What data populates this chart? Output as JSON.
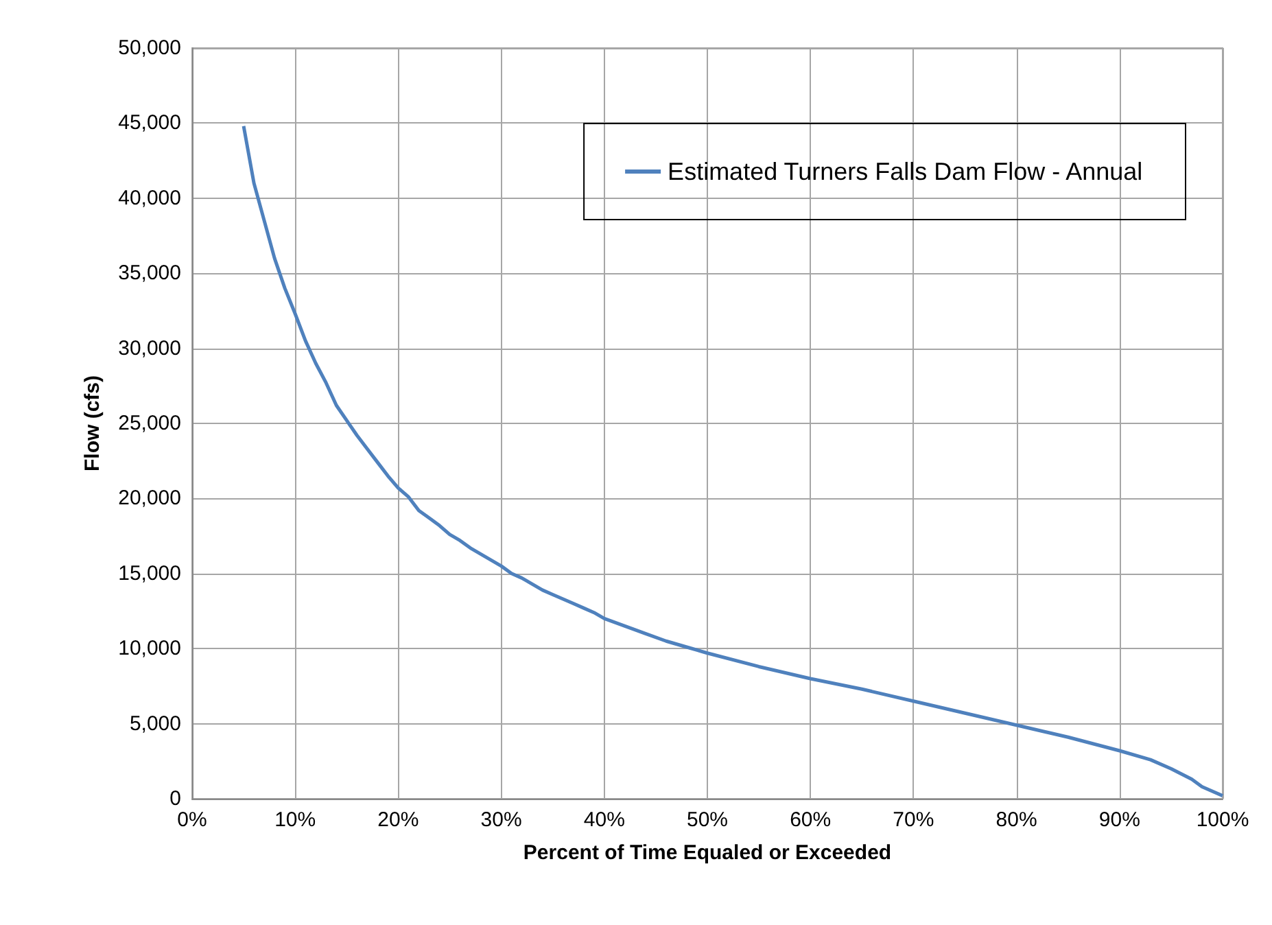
{
  "chart_data": {
    "type": "line",
    "xlabel": "Percent of Time Equaled or Exceeded",
    "ylabel": "Flow (cfs)",
    "series": [
      {
        "name": "Estimated Turners Falls Dam Flow - Annual",
        "color": "#4f81bd",
        "x": [
          5,
          6,
          7,
          8,
          9,
          10,
          11,
          12,
          13,
          14,
          15,
          16,
          17,
          18,
          19,
          20,
          21,
          22,
          23,
          24,
          25,
          26,
          27,
          28,
          29,
          30,
          31,
          32,
          33,
          34,
          35,
          36,
          37,
          38,
          39,
          40,
          42,
          44,
          46,
          48,
          50,
          55,
          60,
          65,
          70,
          75,
          80,
          85,
          90,
          93,
          95,
          97,
          98,
          100
        ],
        "values": [
          44800,
          41000,
          38500,
          36000,
          34000,
          32300,
          30500,
          29000,
          27700,
          26200,
          25200,
          24200,
          23300,
          22400,
          21500,
          20700,
          20100,
          19200,
          18700,
          18200,
          17600,
          17200,
          16700,
          16300,
          15900,
          15500,
          15000,
          14700,
          14300,
          13900,
          13600,
          13300,
          13000,
          12700,
          12400,
          12000,
          11500,
          11000,
          10500,
          10100,
          9700,
          8800,
          8000,
          7300,
          6500,
          5700,
          4900,
          4100,
          3200,
          2600,
          2000,
          1300,
          800,
          200
        ]
      }
    ],
    "xlim": [
      0,
      100
    ],
    "xticks": [
      {
        "value": 0,
        "label": "0%"
      },
      {
        "value": 10,
        "label": "10%"
      },
      {
        "value": 20,
        "label": "20%"
      },
      {
        "value": 30,
        "label": "30%"
      },
      {
        "value": 40,
        "label": "40%"
      },
      {
        "value": 50,
        "label": "50%"
      },
      {
        "value": 60,
        "label": "60%"
      },
      {
        "value": 70,
        "label": "70%"
      },
      {
        "value": 80,
        "label": "80%"
      },
      {
        "value": 90,
        "label": "90%"
      },
      {
        "value": 100,
        "label": "100%"
      }
    ],
    "ylim": [
      0,
      50000
    ],
    "yticks": [
      0,
      {
        "value": 5000,
        "label": "5,000"
      },
      {
        "value": 10000,
        "label": "10,000"
      },
      {
        "value": 15000,
        "label": "15,000"
      },
      {
        "value": 20000,
        "label": "20,000"
      },
      {
        "value": 25000,
        "label": "25,000"
      },
      {
        "value": 30000,
        "label": "30,000"
      },
      {
        "value": 35000,
        "label": "35,000"
      },
      {
        "value": 40000,
        "label": "40,000"
      },
      {
        "value": 45000,
        "label": "45,000"
      },
      {
        "value": 50000,
        "label": "50,000"
      }
    ],
    "grid": true,
    "legend": "top right",
    "marker": "none",
    "line_style": "solid"
  }
}
